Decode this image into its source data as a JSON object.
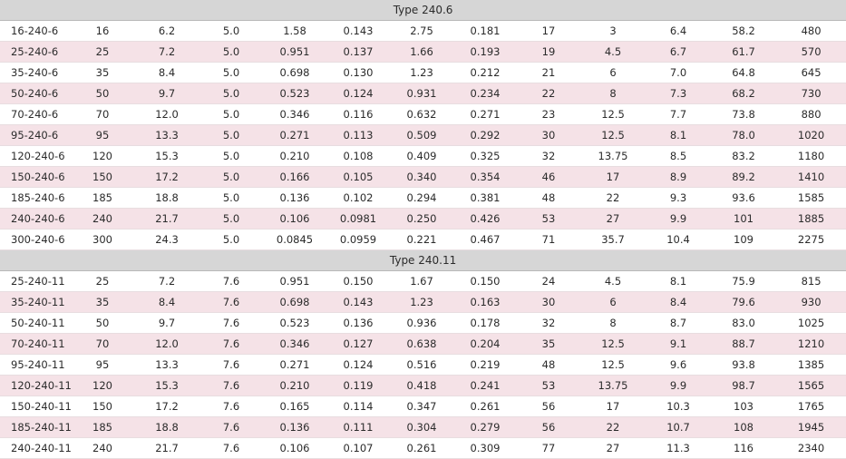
{
  "sections": [
    {
      "title": "Type 240.6",
      "rows": [
        [
          "16-240-6",
          "16",
          "6.2",
          "5.0",
          "1.58",
          "0.143",
          "2.75",
          "0.181",
          "17",
          "3",
          "6.4",
          "58.2",
          "480"
        ],
        [
          "25-240-6",
          "25",
          "7.2",
          "5.0",
          "0.951",
          "0.137",
          "1.66",
          "0.193",
          "19",
          "4.5",
          "6.7",
          "61.7",
          "570"
        ],
        [
          "35-240-6",
          "35",
          "8.4",
          "5.0",
          "0.698",
          "0.130",
          "1.23",
          "0.212",
          "21",
          "6",
          "7.0",
          "64.8",
          "645"
        ],
        [
          "50-240-6",
          "50",
          "9.7",
          "5.0",
          "0.523",
          "0.124",
          "0.931",
          "0.234",
          "22",
          "8",
          "7.3",
          "68.2",
          "730"
        ],
        [
          "70-240-6",
          "70",
          "12.0",
          "5.0",
          "0.346",
          "0.116",
          "0.632",
          "0.271",
          "23",
          "12.5",
          "7.7",
          "73.8",
          "880"
        ],
        [
          "95-240-6",
          "95",
          "13.3",
          "5.0",
          "0.271",
          "0.113",
          "0.509",
          "0.292",
          "30",
          "12.5",
          "8.1",
          "78.0",
          "1020"
        ],
        [
          "120-240-6",
          "120",
          "15.3",
          "5.0",
          "0.210",
          "0.108",
          "0.409",
          "0.325",
          "32",
          "13.75",
          "8.5",
          "83.2",
          "1180"
        ],
        [
          "150-240-6",
          "150",
          "17.2",
          "5.0",
          "0.166",
          "0.105",
          "0.340",
          "0.354",
          "46",
          "17",
          "8.9",
          "89.2",
          "1410"
        ],
        [
          "185-240-6",
          "185",
          "18.8",
          "5.0",
          "0.136",
          "0.102",
          "0.294",
          "0.381",
          "48",
          "22",
          "9.3",
          "93.6",
          "1585"
        ],
        [
          "240-240-6",
          "240",
          "21.7",
          "5.0",
          "0.106",
          "0.0981",
          "0.250",
          "0.426",
          "53",
          "27",
          "9.9",
          "101",
          "1885"
        ],
        [
          "300-240-6",
          "300",
          "24.3",
          "5.0",
          "0.0845",
          "0.0959",
          "0.221",
          "0.467",
          "71",
          "35.7",
          "10.4",
          "109",
          "2275"
        ]
      ]
    },
    {
      "title": "Type 240.11",
      "rows": [
        [
          "25-240-11",
          "25",
          "7.2",
          "7.6",
          "0.951",
          "0.150",
          "1.67",
          "0.150",
          "24",
          "4.5",
          "8.1",
          "75.9",
          "815"
        ],
        [
          "35-240-11",
          "35",
          "8.4",
          "7.6",
          "0.698",
          "0.143",
          "1.23",
          "0.163",
          "30",
          "6",
          "8.4",
          "79.6",
          "930"
        ],
        [
          "50-240-11",
          "50",
          "9.7",
          "7.6",
          "0.523",
          "0.136",
          "0.936",
          "0.178",
          "32",
          "8",
          "8.7",
          "83.0",
          "1025"
        ],
        [
          "70-240-11",
          "70",
          "12.0",
          "7.6",
          "0.346",
          "0.127",
          "0.638",
          "0.204",
          "35",
          "12.5",
          "9.1",
          "88.7",
          "1210"
        ],
        [
          "95-240-11",
          "95",
          "13.3",
          "7.6",
          "0.271",
          "0.124",
          "0.516",
          "0.219",
          "48",
          "12.5",
          "9.6",
          "93.8",
          "1385"
        ],
        [
          "120-240-11",
          "120",
          "15.3",
          "7.6",
          "0.210",
          "0.119",
          "0.418",
          "0.241",
          "53",
          "13.75",
          "9.9",
          "98.7",
          "1565"
        ],
        [
          "150-240-11",
          "150",
          "17.2",
          "7.6",
          "0.165",
          "0.114",
          "0.347",
          "0.261",
          "56",
          "17",
          "10.3",
          "103",
          "1765"
        ],
        [
          "185-240-11",
          "185",
          "18.8",
          "7.6",
          "0.136",
          "0.111",
          "0.304",
          "0.279",
          "56",
          "22",
          "10.7",
          "108",
          "1945"
        ],
        [
          "240-240-11",
          "240",
          "21.7",
          "7.6",
          "0.106",
          "0.107",
          "0.261",
          "0.309",
          "77",
          "27",
          "11.3",
          "116",
          "2340"
        ]
      ]
    }
  ]
}
